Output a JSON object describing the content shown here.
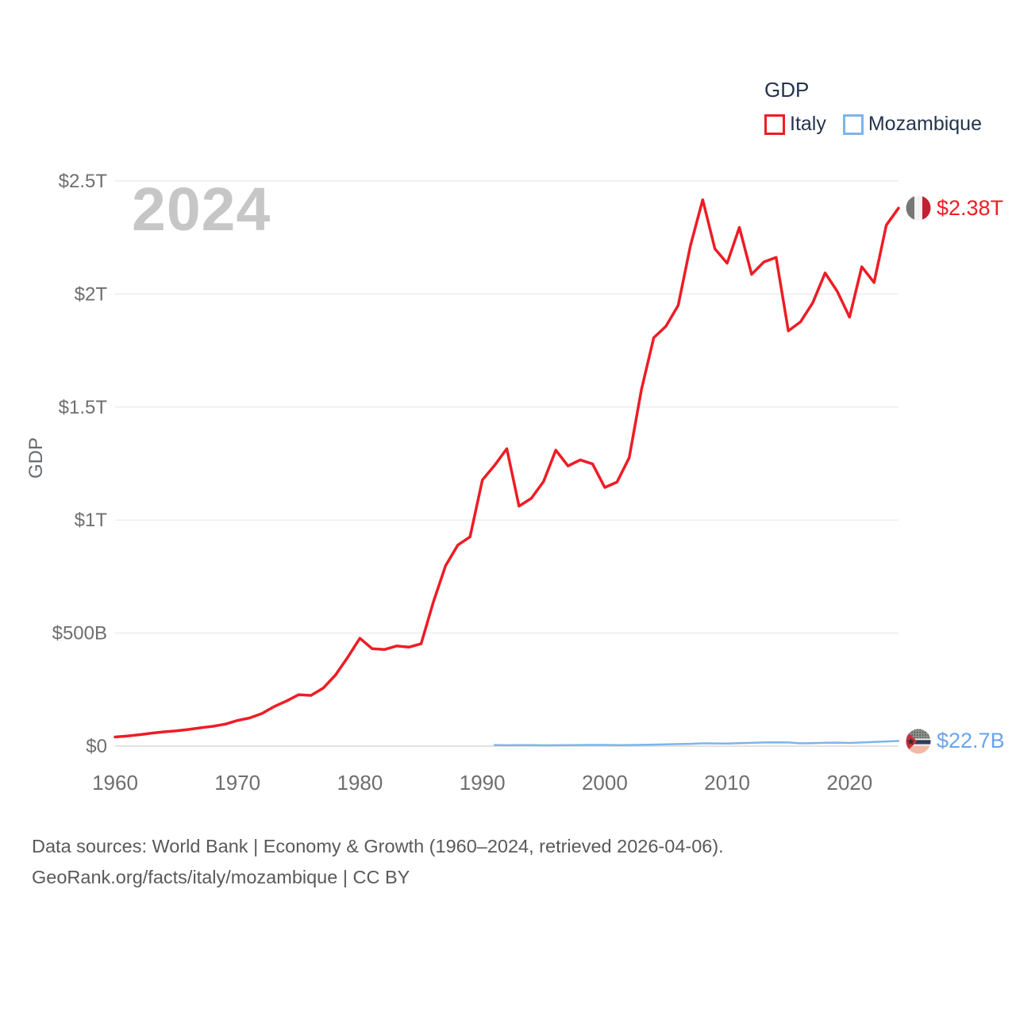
{
  "legend": {
    "title": "GDP",
    "items": [
      {
        "label": "Italy",
        "color": "#ee1c25"
      },
      {
        "label": "Mozambique",
        "color": "#7cb5ec"
      }
    ]
  },
  "watermark": "2024",
  "y_axis": {
    "title": "GDP",
    "ticks": [
      {
        "label": "$0",
        "value": 0
      },
      {
        "label": "$500B",
        "value": 500
      },
      {
        "label": "$1T",
        "value": 1000
      },
      {
        "label": "$1.5T",
        "value": 1500
      },
      {
        "label": "$2T",
        "value": 2000
      },
      {
        "label": "$2.5T",
        "value": 2500
      }
    ]
  },
  "x_axis": {
    "ticks": [
      "1960",
      "1970",
      "1980",
      "1990",
      "2000",
      "2010",
      "2020"
    ]
  },
  "end_labels": [
    {
      "series": "Italy",
      "text": "$2.38T",
      "color": "#ee1c25"
    },
    {
      "series": "Mozambique",
      "text": "$22.7B",
      "color": "#6aa5e8"
    }
  ],
  "footer": {
    "line1": "Data sources: World Bank | Economy & Growth (1960–2024, retrieved 2026-04-06).",
    "line2": "GeoRank.org/facts/italy/mozambique | CC BY"
  },
  "chart_data": {
    "type": "line",
    "title": "GDP",
    "ylabel": "GDP",
    "unit": "USD billions",
    "xlim": [
      1960,
      2024
    ],
    "ylim": [
      0,
      2500
    ],
    "grid": "horizontal",
    "legend_position": "top-right",
    "series": [
      {
        "name": "Italy",
        "color": "#ee1c25",
        "stroke_width": 3.5,
        "start_year": 1960,
        "end_value_label": "$2.38T",
        "values": [
          40.4,
          44.8,
          50.4,
          57.6,
          63.2,
          67.8,
          73.7,
          81.1,
          87.9,
          97.1,
          113.4,
          124.6,
          144.4,
          175.3,
          199.3,
          227.4,
          224.5,
          256.8,
          314.3,
          392.4,
          477.3,
          430.7,
          427.3,
          443.0,
          437.9,
          452.7,
          638.0,
          798.4,
          889.4,
          925.8,
          1177.3,
          1242.0,
          1315.8,
          1061.4,
          1095.7,
          1170.7,
          1309.4,
          1239.5,
          1266.3,
          1248.6,
          1144.4,
          1167.9,
          1275.5,
          1577.2,
          1806.6,
          1857.5,
          1949.4,
          2213.1,
          2416.9,
          2199.9,
          2136.1,
          2294.6,
          2086.9,
          2141.9,
          2162.0,
          1836.6,
          1877.1,
          1961.8,
          2092.9,
          2011.3,
          1897.5,
          2120.3,
          2051.0,
          2304.5,
          2380.0
        ]
      },
      {
        "name": "Mozambique",
        "color": "#7cb5ec",
        "stroke_width": 2.5,
        "start_year": 1991,
        "end_value_label": "$22.7B",
        "values": [
          4.9,
          4.0,
          4.4,
          4.5,
          3.6,
          4.0,
          4.7,
          5.0,
          5.4,
          5.4,
          4.6,
          4.9,
          5.7,
          6.8,
          8.1,
          9.1,
          10.2,
          12.4,
          12.1,
          11.1,
          13.1,
          14.5,
          16.0,
          17.0,
          16.0,
          12.3,
          13.2,
          14.8,
          15.4,
          14.0,
          16.1,
          18.4,
          20.6,
          22.7
        ]
      }
    ]
  }
}
